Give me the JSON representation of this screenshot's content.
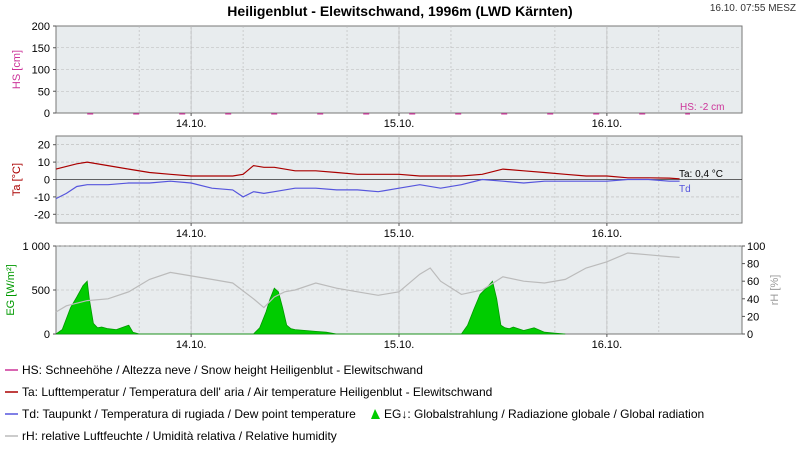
{
  "title": "Heiligenblut - Elewitschwand, 1996m (LWD Kärnten)",
  "timestamp": "16.10. 07:55 MESZ",
  "colors": {
    "snow": "#cc3399",
    "temp": "#aa0000",
    "dew": "#5555dd",
    "radiation": "#00cc00",
    "humidity": "#bbbbbb",
    "plot_bg": "#e8ecee",
    "grid": "#b8b8b8",
    "axis_green": "#009900"
  },
  "chart_data": [
    {
      "id": "snow",
      "type": "line",
      "ylabel": "HS [cm]",
      "ylim": [
        0,
        200
      ],
      "yticks": [
        "0",
        "50",
        "100",
        "150",
        "200"
      ],
      "xticks": [
        "14.10.",
        "15.10.",
        "16.10."
      ],
      "annotation": "HS: -2 cm",
      "series": [
        {
          "x": [
            -0.5,
            0.0,
            0.5,
            1.0,
            1.5,
            2.0,
            2.4
          ],
          "y": [
            -2,
            -2,
            -2,
            -2,
            -2,
            -2,
            -2
          ]
        }
      ]
    },
    {
      "id": "temperature",
      "type": "line",
      "ylabel": "Ta [°C]",
      "ylim": [
        -25,
        25
      ],
      "yticks": [
        "20",
        "10",
        "0",
        "-10",
        "-20"
      ],
      "xticks": [
        "14.10.",
        "15.10.",
        "16.10."
      ],
      "annotation_ta": "Ta: 0,4 °C",
      "annotation_td": "Td",
      "series": [
        {
          "x": [
            -0.65,
            -0.55,
            -0.5,
            -0.4,
            -0.3,
            -0.2,
            -0.1,
            0.0,
            0.1,
            0.2,
            0.25,
            0.3,
            0.35,
            0.4,
            0.5,
            0.6,
            0.7,
            0.8,
            0.9,
            1.0,
            1.1,
            1.2,
            1.3,
            1.4,
            1.5,
            1.6,
            1.7,
            1.8,
            1.9,
            2.0,
            2.1,
            2.2,
            2.3,
            2.35
          ],
          "y": [
            6,
            9,
            10,
            8,
            6,
            4,
            3,
            2,
            2,
            2,
            3,
            8,
            7,
            7,
            5,
            5,
            4,
            3,
            3,
            3,
            2,
            2,
            2,
            3,
            6,
            5,
            4,
            3,
            2,
            2,
            1,
            1,
            0.8,
            0.4
          ]
        },
        {
          "x": [
            -0.65,
            -0.6,
            -0.55,
            -0.5,
            -0.4,
            -0.3,
            -0.2,
            -0.1,
            0.0,
            0.1,
            0.2,
            0.25,
            0.3,
            0.35,
            0.4,
            0.5,
            0.6,
            0.7,
            0.8,
            0.9,
            1.0,
            1.1,
            1.2,
            1.3,
            1.4,
            1.5,
            1.6,
            1.7,
            1.8,
            1.9,
            2.0,
            2.1,
            2.2,
            2.3,
            2.35
          ],
          "y": [
            -11,
            -8,
            -4,
            -3,
            -3,
            -2,
            -2,
            -1,
            -2,
            -5,
            -6,
            -10,
            -7,
            -8,
            -7,
            -5,
            -5,
            -6,
            -6,
            -7,
            -5,
            -3,
            -5,
            -3,
            0,
            -1,
            -2,
            -1,
            -1,
            -1,
            -1,
            0,
            0,
            -1,
            -1
          ]
        }
      ]
    },
    {
      "id": "radiation",
      "type": "area",
      "ylabel": "EG [W/m²]",
      "ylabel2": "rH [%]",
      "ylim": [
        0,
        1000
      ],
      "ylim2": [
        0,
        100
      ],
      "yticks": [
        "1 000",
        "500",
        "0"
      ],
      "yticks2": [
        "100",
        "80",
        "60",
        "40",
        "20",
        "0"
      ],
      "xticks": [
        "14.10.",
        "15.10.",
        "16.10."
      ],
      "series": [
        {
          "x": [
            -0.65,
            -0.62,
            -0.58,
            -0.55,
            -0.52,
            -0.5,
            -0.49,
            -0.47,
            -0.45,
            -0.43,
            -0.4,
            -0.36,
            -0.3,
            -0.28,
            -0.25,
            0.3,
            0.33,
            0.36,
            0.38,
            0.4,
            0.42,
            0.44,
            0.46,
            0.48,
            0.5,
            0.55,
            0.6,
            0.65,
            0.7,
            1.3,
            1.33,
            1.36,
            1.39,
            1.42,
            1.45,
            1.47,
            1.49,
            1.51,
            1.53,
            1.55,
            1.6,
            1.65,
            1.7,
            1.75,
            1.8
          ],
          "y": [
            0,
            50,
            300,
            420,
            550,
            600,
            400,
            120,
            70,
            80,
            60,
            50,
            100,
            20,
            0,
            0,
            70,
            250,
            400,
            520,
            480,
            300,
            100,
            60,
            50,
            40,
            30,
            20,
            0,
            0,
            100,
            280,
            450,
            520,
            600,
            400,
            100,
            70,
            60,
            80,
            40,
            70,
            20,
            10,
            0
          ]
        },
        {
          "x": [
            -0.65,
            -0.6,
            -0.5,
            -0.4,
            -0.3,
            -0.2,
            -0.1,
            0.0,
            0.1,
            0.2,
            0.3,
            0.35,
            0.4,
            0.45,
            0.5,
            0.6,
            0.7,
            0.8,
            0.9,
            1.0,
            1.1,
            1.15,
            1.2,
            1.3,
            1.4,
            1.5,
            1.6,
            1.7,
            1.8,
            1.9,
            2.0,
            2.1,
            2.2,
            2.3,
            2.35
          ],
          "y": [
            25,
            32,
            38,
            40,
            48,
            62,
            70,
            66,
            62,
            58,
            40,
            30,
            42,
            48,
            50,
            58,
            52,
            48,
            44,
            48,
            68,
            75,
            60,
            45,
            50,
            65,
            60,
            58,
            62,
            75,
            82,
            92,
            90,
            88,
            87
          ]
        }
      ]
    }
  ],
  "legend": {
    "hs": "HS: Schneehöhe / Altezza neve / Snow height  Heiligenblut - Elewitschwand",
    "ta": "Ta: Lufttemperatur / Temperatura dell' aria / Air temperature  Heiligenblut - Elewitschwand",
    "td": "Td: Taupunkt / Temperatura di rugiada / Dew point temperature",
    "eg": "EG↓: Globalstrahlung / Radiazione globale / Global radiation",
    "rh": "rH: relative Luftfeuchte / Umidità relativa / Relative humidity"
  }
}
